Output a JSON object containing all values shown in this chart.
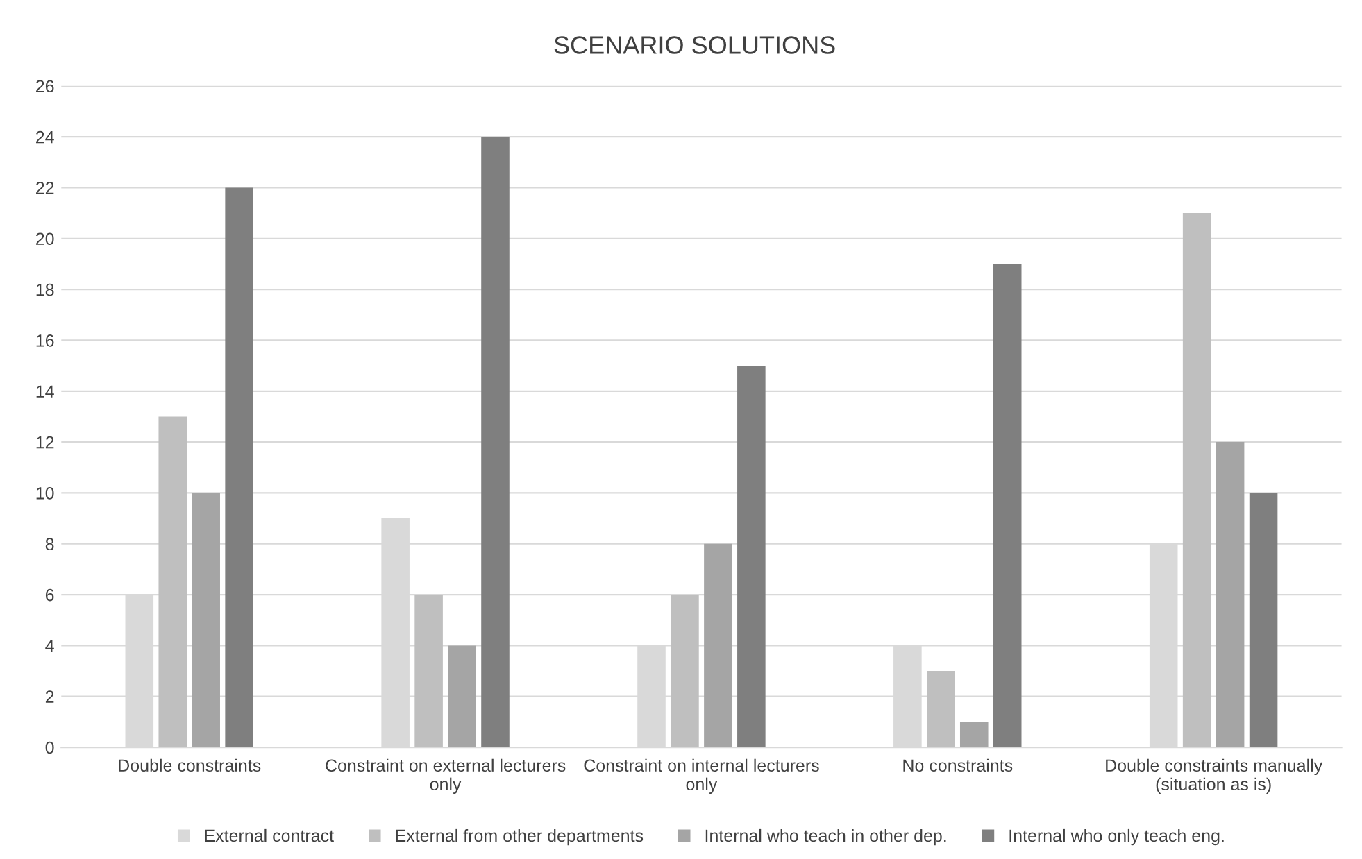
{
  "chart_data": {
    "type": "bar",
    "title": "SCENARIO SOLUTIONS",
    "categories": [
      "Double constraints",
      "Constraint on external lecturers\nonly",
      "Constraint on internal lecturers\nonly",
      "No constraints",
      "Double constraints manually\n(situation as is)"
    ],
    "series": [
      {
        "name": "External contract",
        "color": "#d9d9d9",
        "values": [
          6,
          9,
          4,
          4,
          8
        ]
      },
      {
        "name": "External from other departments",
        "color": "#bfbfbf",
        "values": [
          13,
          6,
          6,
          3,
          21
        ]
      },
      {
        "name": "Internal who teach in other dep.",
        "color": "#a5a5a5",
        "values": [
          10,
          4,
          8,
          1,
          12
        ]
      },
      {
        "name": "Internal who only teach eng.",
        "color": "#7f7f7f",
        "values": [
          22,
          24,
          15,
          19,
          10
        ]
      }
    ],
    "ylim": [
      0,
      26
    ],
    "yticks": [
      0,
      2,
      4,
      6,
      8,
      10,
      12,
      14,
      16,
      18,
      20,
      22,
      24,
      26
    ],
    "grid": "y",
    "legend": "bottom"
  }
}
